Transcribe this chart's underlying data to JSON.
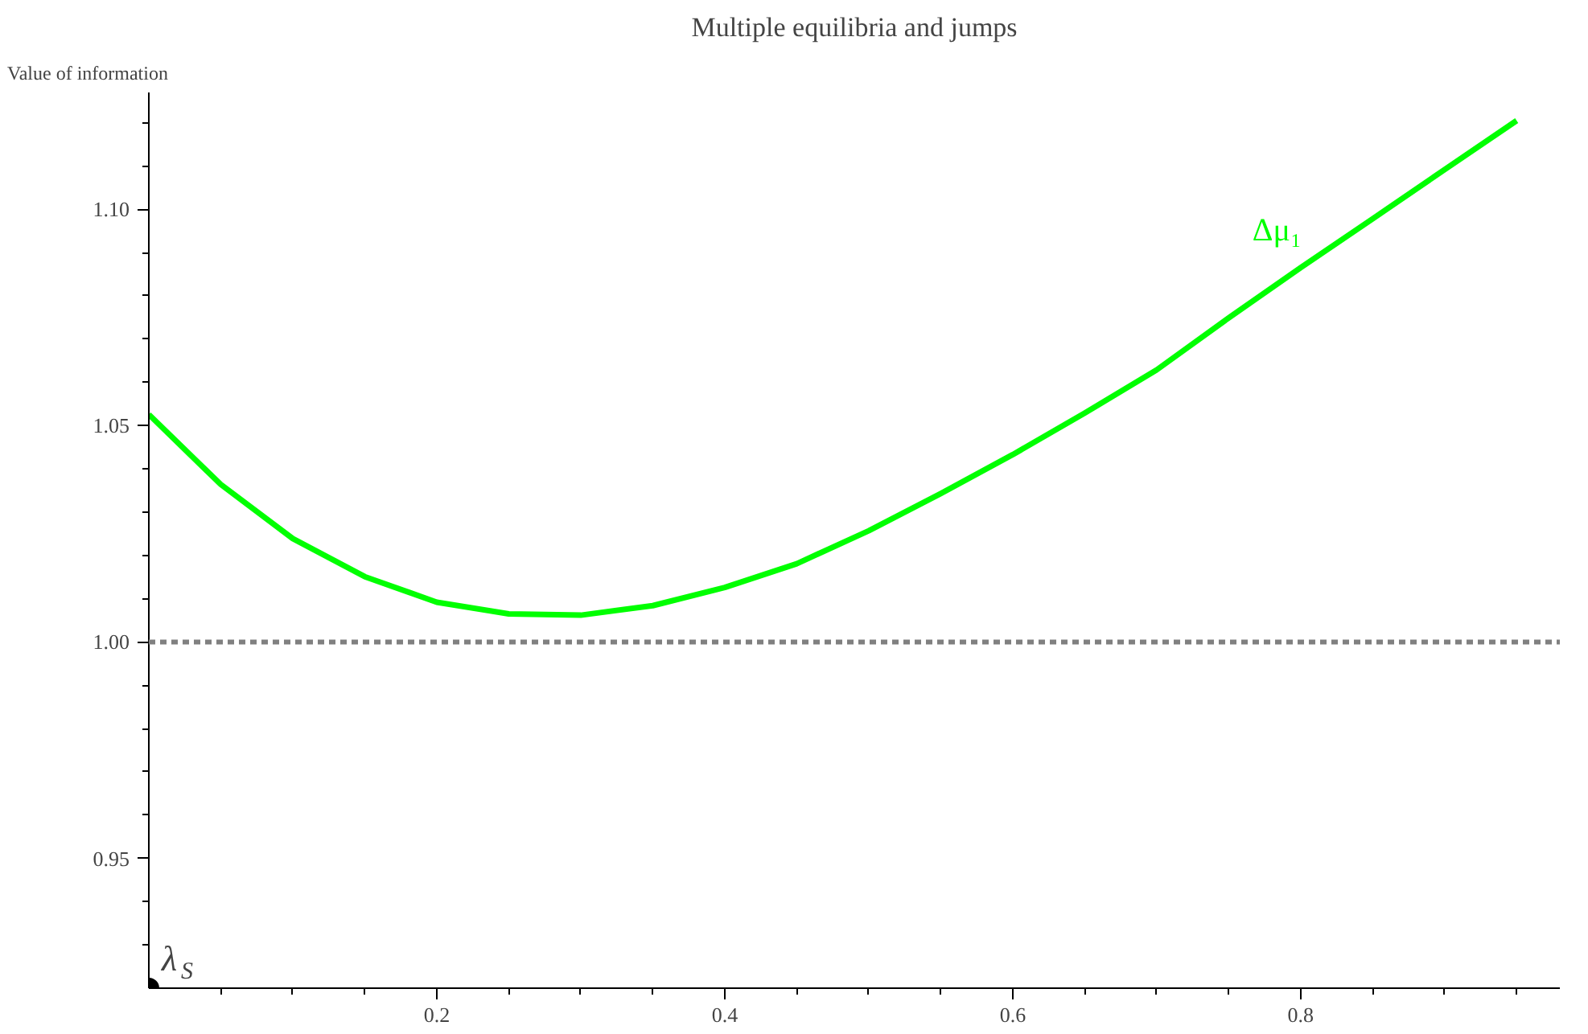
{
  "chart_data": {
    "type": "line",
    "title": "Multiple equilibria and jumps",
    "ylabel": "Value of information",
    "x": [
      0,
      0.05,
      0.1,
      0.15,
      0.2,
      0.25,
      0.3,
      0.35,
      0.4,
      0.45,
      0.5,
      0.55,
      0.6,
      0.65,
      0.7,
      0.75,
      0.8,
      0.85,
      0.9,
      0.95
    ],
    "series": [
      {
        "name": "Δμ₁",
        "color": "#00ff00",
        "values": [
          1.0526,
          1.0364,
          1.0239,
          1.0151,
          1.0092,
          1.0065,
          1.0062,
          1.0084,
          1.0126,
          1.0181,
          1.0257,
          1.0343,
          1.0433,
          1.0529,
          1.0629,
          1.0749,
          1.0865,
          1.0978,
          1.1092,
          1.1205
        ]
      }
    ],
    "xlim": [
      0,
      0.98
    ],
    "ylim": [
      0.92,
      1.127
    ],
    "xticks": [
      {
        "value": 0.05,
        "label": null
      },
      {
        "value": 0.1,
        "label": null
      },
      {
        "value": 0.15,
        "label": null
      },
      0.2,
      {
        "value": 0.25,
        "label": null
      },
      {
        "value": 0.3,
        "label": null
      },
      {
        "value": 0.35,
        "label": null
      },
      0.4,
      {
        "value": 0.45,
        "label": null
      },
      {
        "value": 0.5,
        "label": null
      },
      {
        "value": 0.55,
        "label": null
      },
      0.6,
      {
        "value": 0.65,
        "label": null
      },
      {
        "value": 0.7,
        "label": null
      },
      {
        "value": 0.75,
        "label": null
      },
      0.8,
      {
        "value": 0.85,
        "label": null
      },
      {
        "value": 0.9,
        "label": null
      },
      {
        "value": 0.95,
        "label": null
      }
    ],
    "yticks": [
      {
        "value": 0.93,
        "label": null
      },
      {
        "value": 0.94,
        "label": null
      },
      0.95,
      {
        "value": 0.96,
        "label": null
      },
      {
        "value": 0.97,
        "label": null
      },
      {
        "value": 0.98,
        "label": null
      },
      {
        "value": 0.99,
        "label": null
      },
      {
        "value": 1.0,
        "label": "1.00"
      },
      {
        "value": 1.01,
        "label": null
      },
      {
        "value": 1.02,
        "label": null
      },
      {
        "value": 1.03,
        "label": null
      },
      {
        "value": 1.04,
        "label": null
      },
      1.05,
      {
        "value": 1.06,
        "label": null
      },
      {
        "value": 1.07,
        "label": null
      },
      {
        "value": 1.08,
        "label": null
      },
      {
        "value": 1.09,
        "label": null
      },
      {
        "value": 1.1,
        "label": "1.10"
      },
      {
        "value": 1.11,
        "label": null
      },
      {
        "value": 1.12,
        "label": null
      }
    ],
    "ref_lines": [
      {
        "axis": "y",
        "value": 1.0,
        "color": "#808080",
        "line_style": "dashed"
      }
    ],
    "annotations": [
      {
        "text": "λ$_{S}$",
        "x": 0,
        "y": 0.92
      }
    ],
    "grid": false,
    "legend": false,
    "line_style": "solid",
    "marker": "none"
  }
}
